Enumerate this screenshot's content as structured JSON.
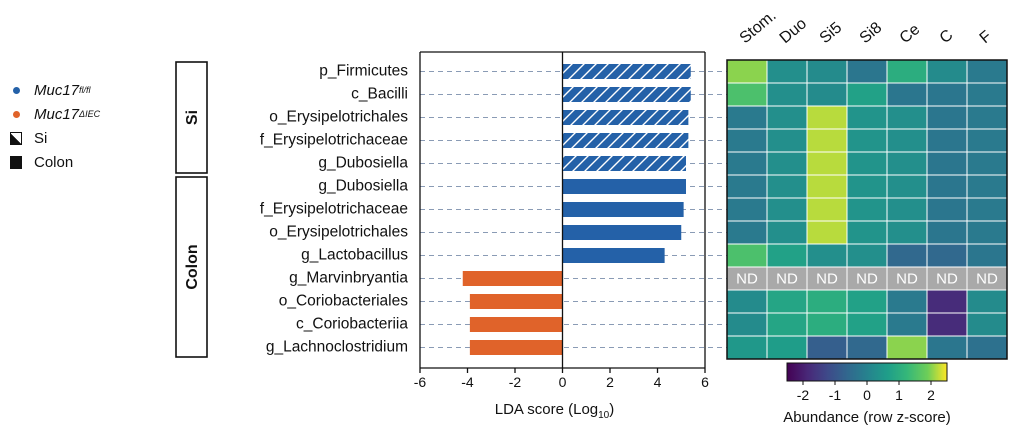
{
  "legend": {
    "items": [
      {
        "label": "Muc17",
        "sup": "fl/fl",
        "color": "#2461a8",
        "symbol": "dot"
      },
      {
        "label": "Muc17",
        "sup": "ΔIEC",
        "color": "#e0632a",
        "symbol": "dot"
      },
      {
        "label": "Si",
        "symbol": "hatch"
      },
      {
        "label": "Colon",
        "symbol": "square"
      }
    ]
  },
  "chart_data": [
    {
      "type": "bar",
      "orientation": "horizontal",
      "xlabel": "LDA score (Log",
      "xlabel_sub": "10",
      "xlabel_close": ")",
      "xlim": [
        -6,
        6
      ],
      "xticks": [
        -6,
        -4,
        -2,
        0,
        2,
        4,
        6
      ],
      "groups": [
        {
          "label": "Si",
          "start": 0,
          "end": 4
        },
        {
          "label": "Colon",
          "start": 5,
          "end": 12
        }
      ],
      "categories": [
        "p_Firmicutes",
        "c_Bacilli",
        "o_Erysipelotrichales",
        "f_Erysipelotrichaceae",
        "g_Dubosiella",
        "g_Dubosiella",
        "f_Erysipelotrichaceae",
        "o_Erysipelotrichales",
        "g_Lactobacillus",
        "g_Marvinbryantia",
        "o_Coriobacteriales",
        "c_Coriobacteriia",
        "g_Lachnoclostridium"
      ],
      "values": [
        5.4,
        5.4,
        5.3,
        5.3,
        5.2,
        5.2,
        5.1,
        5.0,
        4.3,
        -4.2,
        -3.9,
        -3.9,
        -3.9
      ],
      "tissue": [
        "Si",
        "Si",
        "Si",
        "Si",
        "Si",
        "Colon",
        "Colon",
        "Colon",
        "Colon",
        "Colon",
        "Colon",
        "Colon",
        "Colon"
      ],
      "colors": {
        "fl/fl": "#2461a8",
        "ΔIEC": "#e0632a"
      }
    },
    {
      "type": "heatmap",
      "columns": [
        "Stom.",
        "Duo",
        "Si5",
        "Si8",
        "Ce",
        "C",
        "F"
      ],
      "na_label": "ND",
      "values": [
        [
          2.0,
          0.3,
          0.2,
          -0.3,
          1.0,
          0.2,
          -0.2
        ],
        [
          1.5,
          0.3,
          0.2,
          0.7,
          -0.3,
          -0.3,
          -0.2
        ],
        [
          -0.2,
          0.3,
          2.2,
          0.4,
          0.3,
          -0.3,
          -0.2
        ],
        [
          -0.2,
          0.3,
          2.2,
          0.4,
          0.3,
          -0.3,
          -0.2
        ],
        [
          -0.2,
          0.3,
          2.2,
          0.4,
          0.3,
          -0.3,
          -0.2
        ],
        [
          -0.2,
          0.3,
          2.2,
          0.4,
          0.3,
          -0.3,
          -0.2
        ],
        [
          -0.2,
          0.3,
          2.2,
          0.4,
          0.3,
          -0.3,
          -0.2
        ],
        [
          -0.2,
          0.3,
          2.2,
          0.4,
          0.3,
          -0.3,
          -0.2
        ],
        [
          1.5,
          0.7,
          0.3,
          0.3,
          -0.6,
          -0.6,
          -0.3
        ],
        [
          null,
          null,
          null,
          null,
          null,
          null,
          null
        ],
        [
          0.2,
          0.8,
          1.0,
          0.7,
          -0.2,
          -1.8,
          0.2
        ],
        [
          0.2,
          0.8,
          1.0,
          0.7,
          -0.2,
          -1.8,
          0.2
        ],
        [
          0.5,
          0.6,
          -0.8,
          -0.6,
          2.0,
          -0.3,
          -0.4
        ]
      ],
      "colorbar": {
        "label": "Abundance (row z-score)",
        "range": [
          -2.5,
          2.5
        ],
        "ticks": [
          -2,
          -1,
          0,
          1,
          2
        ]
      }
    }
  ]
}
